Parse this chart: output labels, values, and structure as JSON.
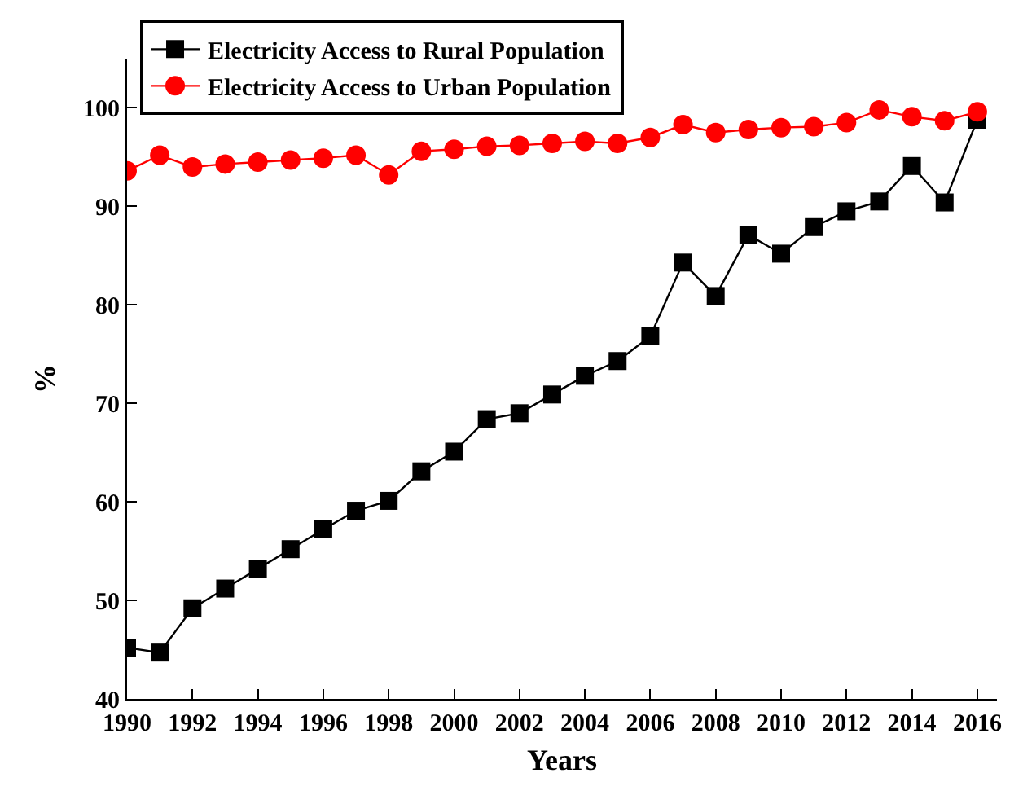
{
  "chart_data": {
    "type": "line",
    "xlabel": "Years",
    "ylabel": "%",
    "x": [
      1990,
      1991,
      1992,
      1993,
      1994,
      1995,
      1996,
      1997,
      1998,
      1999,
      2000,
      2001,
      2002,
      2003,
      2004,
      2005,
      2006,
      2007,
      2008,
      2009,
      2010,
      2011,
      2012,
      2013,
      2014,
      2015,
      2016
    ],
    "series": [
      {
        "name": "Electricity Access to Rural Population",
        "color": "#000000",
        "marker": "square",
        "values": [
          45.2,
          44.7,
          49.2,
          51.2,
          53.2,
          55.2,
          57.2,
          59.1,
          60.1,
          63.1,
          65.1,
          68.4,
          69.0,
          70.9,
          72.8,
          74.3,
          76.8,
          84.3,
          80.9,
          87.1,
          85.2,
          87.9,
          89.5,
          90.5,
          94.1,
          90.4,
          98.8
        ]
      },
      {
        "name": "Electricity Access to Urban Population",
        "color": "#ff0000",
        "marker": "circle",
        "values": [
          93.6,
          95.2,
          94.0,
          94.3,
          94.5,
          94.7,
          94.9,
          95.2,
          93.2,
          95.6,
          95.8,
          96.1,
          96.2,
          96.4,
          96.6,
          96.4,
          97.0,
          98.3,
          97.5,
          97.8,
          98.0,
          98.1,
          98.5,
          99.8,
          99.1,
          98.7,
          99.6
        ]
      }
    ],
    "xlim": [
      1990,
      2016.6
    ],
    "xticks": [
      1990,
      1992,
      1994,
      1996,
      1998,
      2000,
      2002,
      2004,
      2006,
      2008,
      2010,
      2012,
      2014,
      2016
    ],
    "ylim": [
      40,
      105
    ],
    "yticks": [
      40,
      50,
      60,
      70,
      80,
      90,
      100
    ],
    "grid": false,
    "legend": "top left",
    "line_style": "solid"
  }
}
